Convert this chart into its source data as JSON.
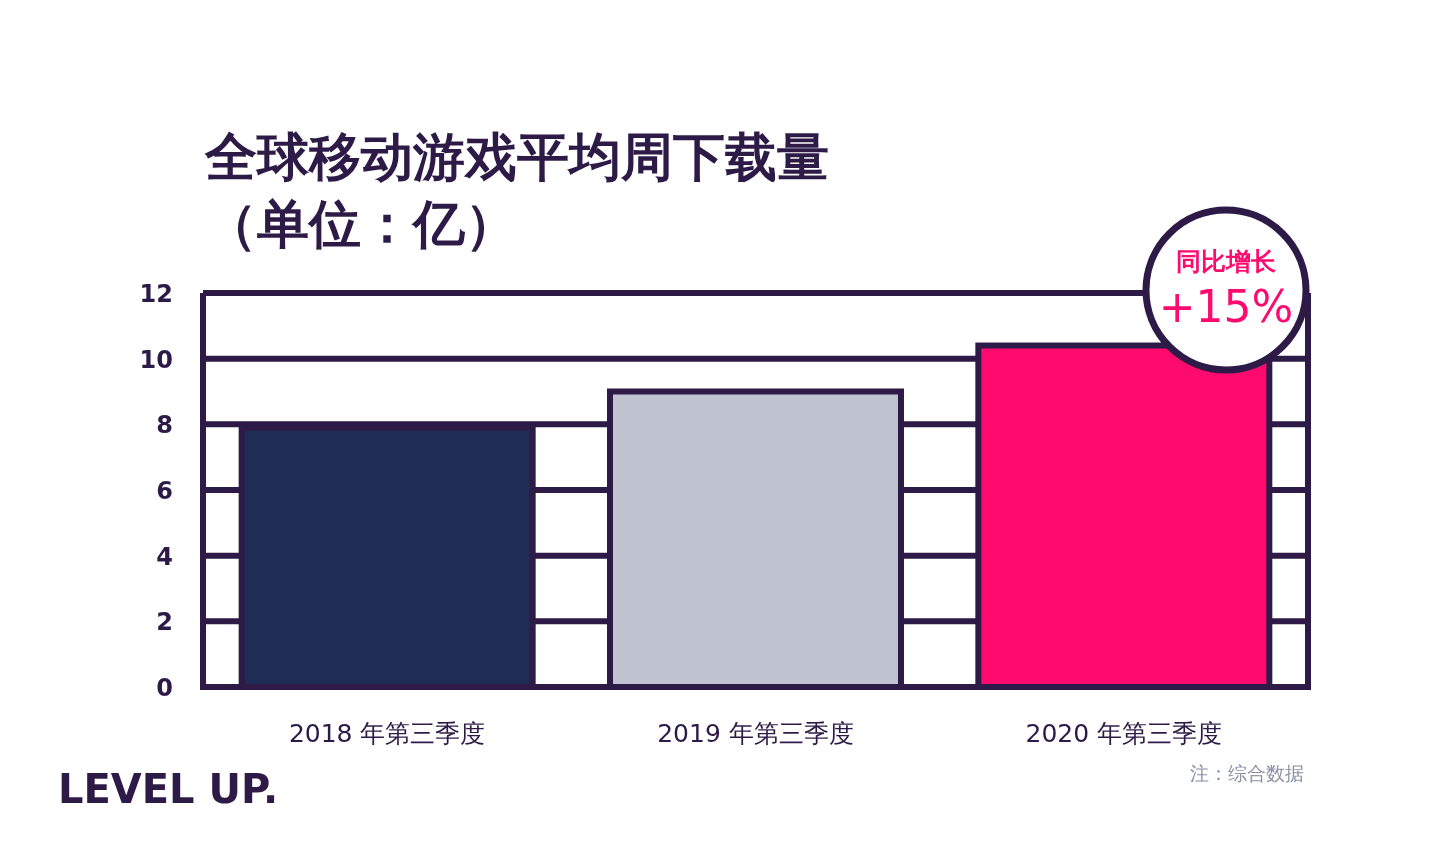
{
  "chart_data": {
    "type": "bar",
    "title": "全球移动游戏平均周下载量",
    "subtitle": "（单位：亿）",
    "categories": [
      "2018 年第三季度",
      "2019 年第三季度",
      "2020 年第三季度"
    ],
    "values": [
      7.9,
      9.0,
      10.4
    ],
    "colors": [
      "#1e2d55",
      "#c0c4d0",
      "#ff0a6e"
    ],
    "ylim": [
      0,
      12
    ],
    "yticks": [
      0,
      2,
      4,
      6,
      8,
      10,
      12
    ],
    "grid": "y",
    "annotations": [
      "同比增长",
      "+15%",
      "LEVEL UP.",
      "注：综合数据"
    ]
  }
}
